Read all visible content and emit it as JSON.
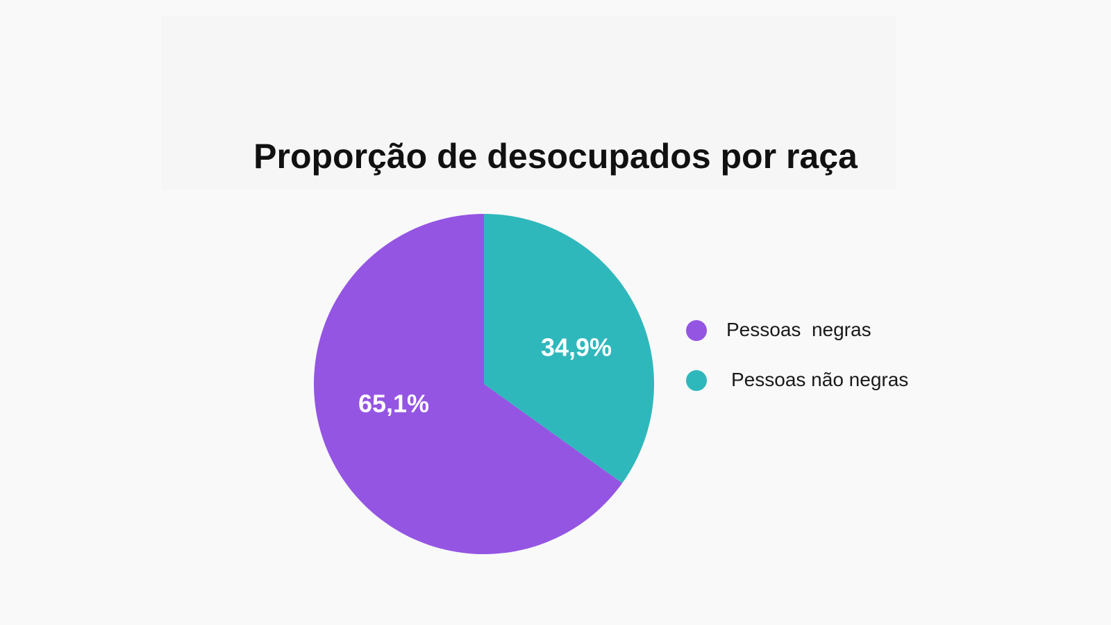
{
  "chart_data": {
    "type": "pie",
    "title": "Proporção de desocupados por raça",
    "slices": [
      {
        "name": "Pessoas  negras",
        "value": 65.1,
        "label": "65,1%",
        "color": "#9455e3"
      },
      {
        "name": "Pessoas não negras",
        "value": 34.9,
        "label": "34,9%",
        "color": "#2fb8bc"
      }
    ],
    "legend_position": "right"
  }
}
